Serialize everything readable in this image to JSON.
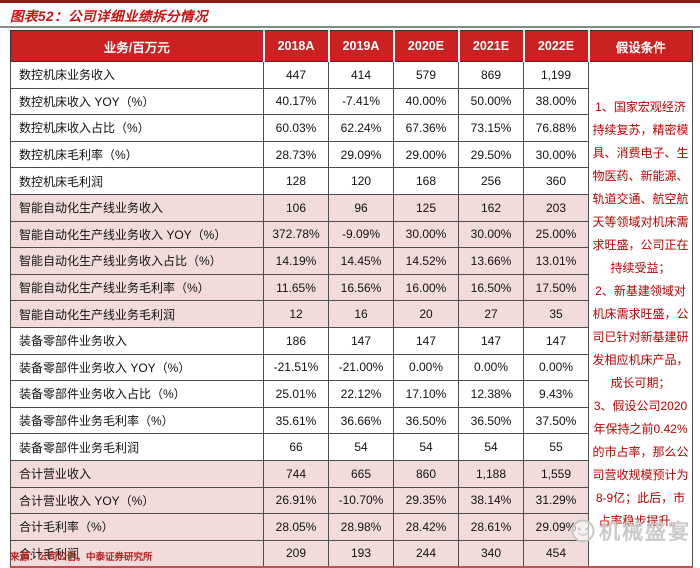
{
  "figure": {
    "title": "图表52：公司详细业绩拆分情况",
    "source": "来源：公司公告，中泰证券研究所"
  },
  "watermark": {
    "text": "机械盛宴"
  },
  "colors": {
    "header_bg": "#CB2121",
    "band_pink": "#F2DCDB",
    "accent_red": "#C00000",
    "title_red": "#CC1111",
    "top_bar": "#8E1E12",
    "table_bottom_red": "#C0504D",
    "watermark_gray": "#C8C8C8"
  },
  "table": {
    "header": [
      "业务/百万元",
      "2018A",
      "2019A",
      "2020E",
      "2021E",
      "2022E",
      "假设条件"
    ],
    "rows": [
      {
        "label": "数控机床业务收入",
        "values": [
          "447",
          "414",
          "579",
          "869",
          "1,199"
        ],
        "band": "white"
      },
      {
        "label": "数控机床收入 YOY（%）",
        "values": [
          "40.17%",
          "-7.41%",
          "40.00%",
          "50.00%",
          "38.00%"
        ],
        "band": "white"
      },
      {
        "label": "数控机床收入占比（%）",
        "values": [
          "60.03%",
          "62.24%",
          "67.36%",
          "73.15%",
          "76.88%"
        ],
        "band": "white"
      },
      {
        "label": "数控机床毛利率（%）",
        "values": [
          "28.73%",
          "29.09%",
          "29.00%",
          "29.50%",
          "30.00%"
        ],
        "band": "white"
      },
      {
        "label": "数控机床毛利润",
        "values": [
          "128",
          "120",
          "168",
          "256",
          "360"
        ],
        "band": "white"
      },
      {
        "label": "智能自动化生产线业务收入",
        "values": [
          "106",
          "96",
          "125",
          "162",
          "203"
        ],
        "band": "pink"
      },
      {
        "label": "智能自动化生产线业务收入 YOY（%）",
        "values": [
          "372.78%",
          "-9.09%",
          "30.00%",
          "30.00%",
          "25.00%"
        ],
        "band": "pink"
      },
      {
        "label": "智能自动化生产线业务收入占比（%）",
        "values": [
          "14.19%",
          "14.45%",
          "14.52%",
          "13.66%",
          "13.01%"
        ],
        "band": "pink"
      },
      {
        "label": "智能自动化生产线业务毛利率（%）",
        "values": [
          "11.65%",
          "16.56%",
          "16.00%",
          "16.50%",
          "17.50%"
        ],
        "band": "pink"
      },
      {
        "label": "智能自动化生产线业务毛利润",
        "values": [
          "12",
          "16",
          "20",
          "27",
          "35"
        ],
        "band": "pink"
      },
      {
        "label": "装备零部件业务收入",
        "values": [
          "186",
          "147",
          "147",
          "147",
          "147"
        ],
        "band": "white"
      },
      {
        "label": "装备零部件业务收入 YOY（%）",
        "values": [
          "-21.51%",
          "-21.00%",
          "0.00%",
          "0.00%",
          "0.00%"
        ],
        "band": "white"
      },
      {
        "label": "装备零部件业务收入占比（%）",
        "values": [
          "25.01%",
          "22.12%",
          "17.10%",
          "12.38%",
          "9.43%"
        ],
        "band": "white"
      },
      {
        "label": "装备零部件业务毛利率（%）",
        "values": [
          "35.61%",
          "36.66%",
          "36.50%",
          "36.50%",
          "37.50%"
        ],
        "band": "white"
      },
      {
        "label": "装备零部件业务毛利润",
        "values": [
          "66",
          "54",
          "54",
          "54",
          "55"
        ],
        "band": "white"
      },
      {
        "label": "合计营业收入",
        "values": [
          "744",
          "665",
          "860",
          "1,188",
          "1,559"
        ],
        "band": "pink"
      },
      {
        "label": "合计营业收入 YOY（%）",
        "values": [
          "26.91%",
          "-10.70%",
          "29.35%",
          "38.14%",
          "31.29%"
        ],
        "band": "pink"
      },
      {
        "label": "合计毛利率（%）",
        "values": [
          "28.05%",
          "28.98%",
          "28.42%",
          "28.61%",
          "29.09%"
        ],
        "band": "pink"
      },
      {
        "label": "合计毛利润",
        "values": [
          "209",
          "193",
          "244",
          "340",
          "454"
        ],
        "band": "pink"
      }
    ],
    "assumptions": [
      "1、国家宏观经济持续复苏，精密模具、消费电子、生物医药、新能源、轨道交通、航空航天等领域对机床需求旺盛，公司正在持续受益；",
      "2、新基建领域对机床需求旺盛，公司已针对新基建研发相应机床产品，成长可期；",
      "3、假设公司2020年保持之前0.42%的市占率，那么公司营收规模预计为8-9亿；此后，市占率稳步提升。"
    ]
  }
}
